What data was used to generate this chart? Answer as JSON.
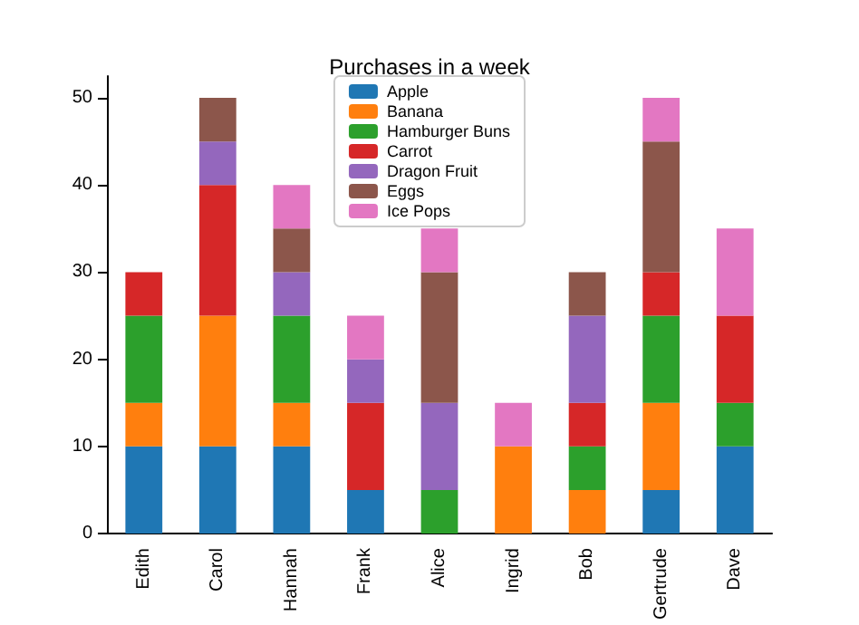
{
  "chart_data": {
    "type": "bar",
    "title": "Purchases in a week",
    "stacked": true,
    "legend": "top",
    "grid": false,
    "categories": [
      "Edith",
      "Carol",
      "Hannah",
      "Frank",
      "Alice",
      "Ingrid",
      "Bob",
      "Gertrude",
      "Dave"
    ],
    "ylim": [
      0,
      52.5
    ],
    "yticks": [
      0,
      10,
      20,
      30,
      40,
      50
    ],
    "series": [
      {
        "name": "Apple",
        "color": "#1f77b4",
        "values": [
          10,
          10,
          10,
          5,
          0,
          0,
          0,
          5,
          10
        ]
      },
      {
        "name": "Banana",
        "color": "#ff7f0e",
        "values": [
          5,
          15,
          5,
          0,
          0,
          10,
          5,
          10,
          0
        ]
      },
      {
        "name": "Hamburger Buns",
        "color": "#2ca02c",
        "values": [
          10,
          0,
          10,
          0,
          5,
          0,
          5,
          10,
          5
        ]
      },
      {
        "name": "Carrot",
        "color": "#d62728",
        "values": [
          5,
          15,
          0,
          10,
          0,
          0,
          5,
          5,
          10
        ]
      },
      {
        "name": "Dragon Fruit",
        "color": "#9467bd",
        "values": [
          0,
          5,
          5,
          5,
          10,
          0,
          10,
          0,
          0
        ]
      },
      {
        "name": "Eggs",
        "color": "#8c564b",
        "values": [
          0,
          5,
          5,
          0,
          15,
          0,
          5,
          15,
          0
        ]
      },
      {
        "name": "Ice Pops",
        "color": "#e377c2",
        "values": [
          0,
          0,
          5,
          5,
          5,
          5,
          0,
          5,
          10
        ]
      }
    ]
  }
}
